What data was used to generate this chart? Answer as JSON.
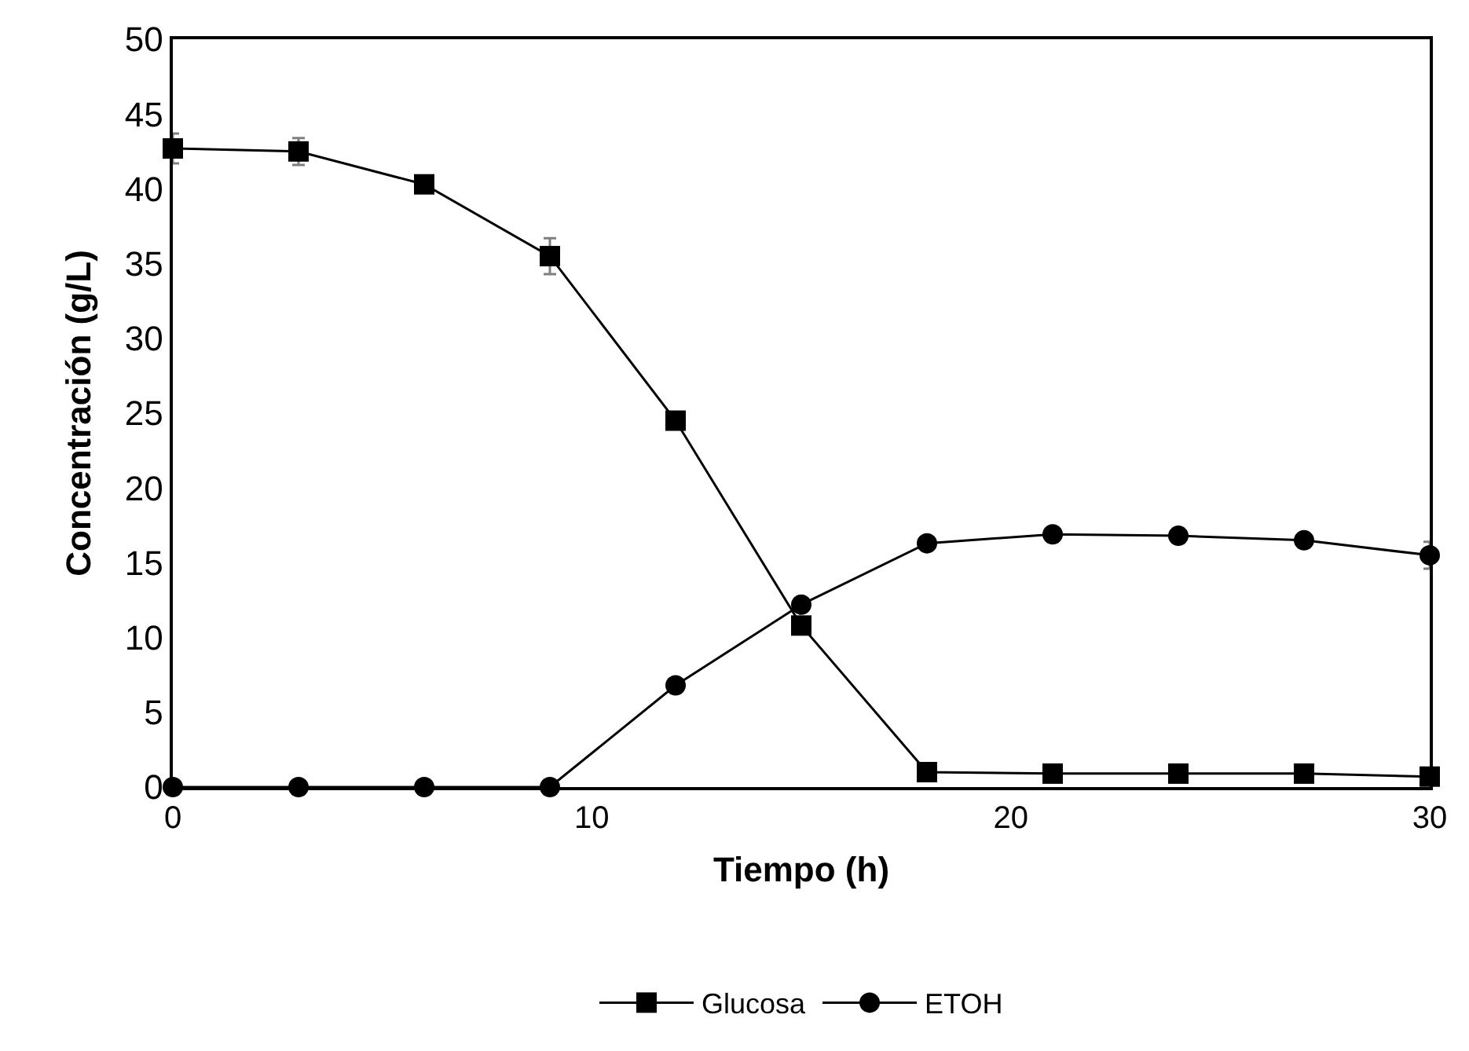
{
  "chart_data": {
    "type": "line",
    "xlabel": "Tiempo (h)",
    "ylabel": "Concentración (g/L)",
    "x": [
      0,
      3,
      6,
      9,
      12,
      15,
      18,
      21,
      24,
      27,
      30
    ],
    "series": [
      {
        "name": "Glucosa",
        "color": "#000000",
        "marker": "square",
        "values": [
          42.7,
          42.5,
          40.3,
          35.5,
          24.5,
          10.8,
          1.0,
          0.9,
          0.9,
          0.9,
          0.7
        ],
        "errors": [
          1.0,
          0.9,
          null,
          1.2,
          null,
          null,
          null,
          null,
          null,
          null,
          null
        ]
      },
      {
        "name": "ETOH",
        "color": "#000000",
        "marker": "circle",
        "values": [
          0,
          0,
          0,
          0,
          6.8,
          12.2,
          16.3,
          16.9,
          16.8,
          16.5,
          15.5
        ],
        "errors": [
          null,
          null,
          null,
          null,
          null,
          null,
          null,
          null,
          null,
          null,
          0.9
        ]
      }
    ],
    "xlim": [
      0,
      30
    ],
    "xticks": [
      0,
      10,
      20,
      30
    ],
    "ylim": [
      0,
      50
    ],
    "yticks": [
      0,
      5,
      10,
      15,
      20,
      25,
      30,
      35,
      40,
      45,
      50
    ],
    "legend": "bottom",
    "line_style": "solid"
  }
}
